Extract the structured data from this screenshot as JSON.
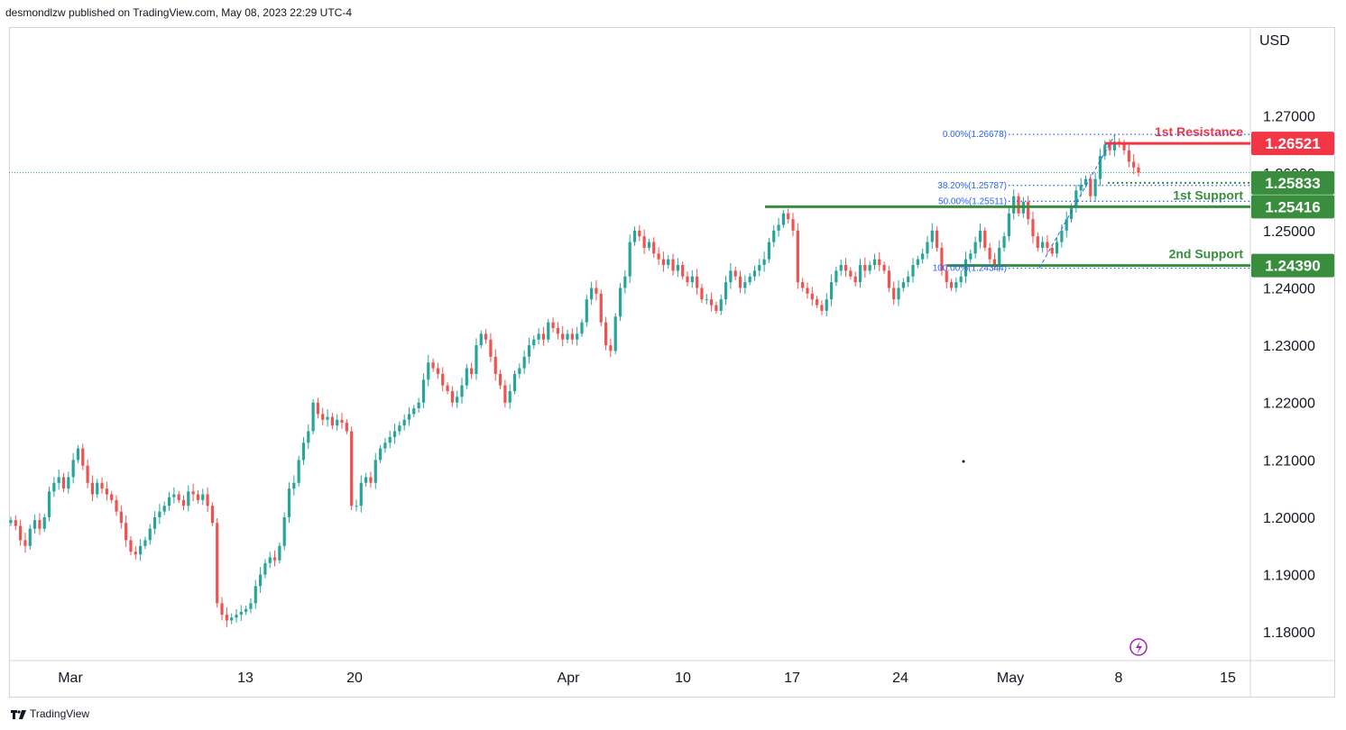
{
  "header": {
    "text": "desmondlzw published on TradingView.com, May 08, 2023 22:29 UTC-4"
  },
  "footer": {
    "brand": "TradingView",
    "logo_icon": "tradingview-logo-icon"
  },
  "colors": {
    "up": "#26a69a",
    "down": "#ef5350",
    "support": "#388e3c",
    "resistance": "#f23645",
    "fib": "#2962ff",
    "axis_text": "#131722"
  },
  "chart_data": {
    "type": "candlestick",
    "title": "",
    "currency": "USD",
    "y_range": [
      1.175,
      1.2855
    ],
    "y_ticks": [
      "1.27000",
      "1.26000",
      "1.25000",
      "1.24000",
      "1.23000",
      "1.22000",
      "1.21000",
      "1.20000",
      "1.19000",
      "1.18000"
    ],
    "x_ticks": [
      "Mar",
      "13",
      "20",
      "Apr",
      "10",
      "17",
      "24",
      "May",
      "8",
      "15"
    ],
    "grid": false,
    "levels": [
      {
        "name": "1st Resistance",
        "price": 1.26521,
        "badge": "1.26521",
        "type": "resistance"
      },
      {
        "name": "1st Support",
        "price": 1.25416,
        "badge": "1.25416",
        "type": "support"
      },
      {
        "name": "2nd Support",
        "price": 1.2439,
        "badge": "1.24390",
        "type": "support"
      },
      {
        "name": "",
        "price": 1.25833,
        "badge": "1.25833",
        "type": "support-dotted"
      }
    ],
    "fibonacci": [
      {
        "label": "0.00%(1.26678)",
        "price": 1.26678
      },
      {
        "label": "38.20%(1.25787)",
        "price": 1.25787
      },
      {
        "label": "50.00%(1.25511)",
        "price": 1.25511
      },
      {
        "label": "100.00%(1.24344)",
        "price": 1.24344
      }
    ],
    "last_price": 1.2601,
    "close_series": [
      1.1995,
      1.1985,
      1.196,
      1.195,
      1.198,
      1.1995,
      1.198,
      1.2,
      1.2045,
      1.206,
      1.207,
      1.205,
      1.207,
      1.21,
      1.212,
      1.209,
      1.206,
      1.204,
      1.206,
      1.205,
      1.204,
      1.203,
      1.201,
      1.199,
      1.196,
      1.194,
      1.1935,
      1.195,
      1.196,
      1.198,
      1.2,
      1.201,
      1.202,
      1.2035,
      1.204,
      1.203,
      1.202,
      1.2045,
      1.204,
      1.203,
      1.204,
      1.202,
      1.199,
      1.185,
      1.183,
      1.182,
      1.1825,
      1.183,
      1.1835,
      1.184,
      1.185,
      1.188,
      1.19,
      1.192,
      1.193,
      1.1925,
      1.195,
      1.2,
      1.205,
      1.206,
      1.21,
      1.213,
      1.215,
      1.22,
      1.218,
      1.217,
      1.2175,
      1.216,
      1.217,
      1.2165,
      1.215,
      1.202,
      1.202,
      1.206,
      1.207,
      1.206,
      1.21,
      1.212,
      1.213,
      1.214,
      1.215,
      1.216,
      1.217,
      1.218,
      1.219,
      1.22,
      1.224,
      1.227,
      1.226,
      1.225,
      1.223,
      1.222,
      1.22,
      1.221,
      1.223,
      1.226,
      1.225,
      1.23,
      1.232,
      1.231,
      1.228,
      1.225,
      1.223,
      1.22,
      1.222,
      1.225,
      1.226,
      1.228,
      1.23,
      1.231,
      1.232,
      1.231,
      1.234,
      1.233,
      1.232,
      1.231,
      1.232,
      1.231,
      1.232,
      1.234,
      1.238,
      1.24,
      1.239,
      1.234,
      1.23,
      1.229,
      1.235,
      1.24,
      1.242,
      1.248,
      1.25,
      1.249,
      1.247,
      1.248,
      1.246,
      1.245,
      1.244,
      1.245,
      1.243,
      1.244,
      1.242,
      1.241,
      1.242,
      1.24,
      1.238,
      1.238,
      1.237,
      1.236,
      1.238,
      1.241,
      1.243,
      1.242,
      1.24,
      1.241,
      1.242,
      1.243,
      1.244,
      1.245,
      1.248,
      1.25,
      1.251,
      1.253,
      1.252,
      1.25,
      1.241,
      1.24,
      1.239,
      1.238,
      1.237,
      1.236,
      1.238,
      1.241,
      1.243,
      1.244,
      1.243,
      1.242,
      1.241,
      1.244,
      1.243,
      1.244,
      1.245,
      1.244,
      1.243,
      1.24,
      1.238,
      1.24,
      1.241,
      1.242,
      1.244,
      1.245,
      1.246,
      1.248,
      1.25,
      1.247,
      1.243,
      1.241,
      1.24,
      1.241,
      1.242,
      1.245,
      1.246,
      1.248,
      1.25,
      1.247,
      1.245,
      1.244,
      1.247,
      1.249,
      1.253,
      1.256,
      1.253,
      1.255,
      1.252,
      1.249,
      1.247,
      1.248,
      1.247,
      1.246,
      1.248,
      1.25,
      1.252,
      1.254,
      1.257,
      1.258,
      1.259,
      1.256,
      1.259,
      1.263,
      1.265,
      1.264,
      1.2655,
      1.265,
      1.264,
      1.262,
      1.261,
      1.2601
    ]
  }
}
